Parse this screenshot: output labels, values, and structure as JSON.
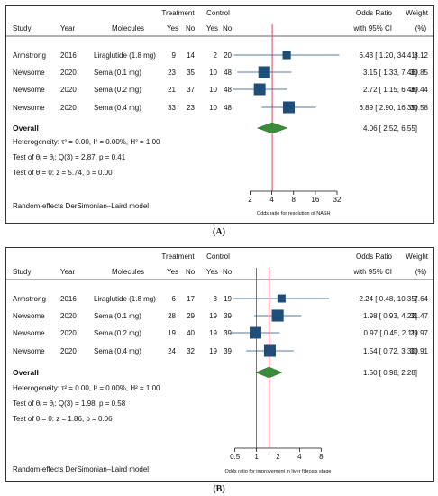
{
  "panels": [
    {
      "label": "(A)",
      "headers": {
        "study": "Study",
        "year": "Year",
        "molecules": "Molecules",
        "treatment": "Treatment",
        "control": "Control",
        "yes": "Yes",
        "no": "No",
        "or": "Odds Ratio",
        "ci": "with 95% CI",
        "weight": "Weight",
        "pct": "(%)"
      },
      "rows": [
        {
          "study": "Armstrong",
          "year": "2016",
          "molecule": "Liraglutide (1.8 mg)",
          "t_yes": "9",
          "t_no": "14",
          "c_yes": "2",
          "c_no": "20",
          "or_text": "6.43 [ 1.20, 34.41]",
          "weight": "8.12"
        },
        {
          "study": "Newsome",
          "year": "2020",
          "molecule": "Sema (0.1 mg)",
          "t_yes": "23",
          "t_no": "35",
          "c_yes": "10",
          "c_no": "48",
          "or_text": "3.15 [ 1.33,  7.46]",
          "weight": "30.85"
        },
        {
          "study": "Newsome",
          "year": "2020",
          "molecule": "Sema (0.2 mg)",
          "t_yes": "21",
          "t_no": "37",
          "c_yes": "10",
          "c_no": "48",
          "or_text": "2.72 [ 1.15,  6.48]",
          "weight": "30.44"
        },
        {
          "study": "Newsome",
          "year": "2020",
          "molecule": "Sema (0.4 mg)",
          "t_yes": "33",
          "t_no": "23",
          "c_yes": "10",
          "c_no": "48",
          "or_text": "6.89 [ 2.90, 16.35]",
          "weight": "30.58"
        }
      ],
      "overall": {
        "label": "Overall",
        "or_text": "4.06 [ 2.52,  6.55]"
      },
      "heterogeneity": "Heterogeneity: τ² = 0.00, I² = 0.00%, H² = 1.00",
      "test_theta_i": "Test of θᵢ = θⱼ: Q(3) = 2.87, p = 0.41",
      "test_theta": "Test of θ = 0: z = 5.74, p = 0.00",
      "model": "Random-effects DerSimonian–Laird model",
      "axis_title": "Odds ratio for resolution of NASH"
    },
    {
      "label": "(B)",
      "headers": {
        "study": "Study",
        "year": "Year",
        "molecules": "Molecules",
        "treatment": "Treatment",
        "control": "Control",
        "yes": "Yes",
        "no": "No",
        "or": "Odds Ratio",
        "ci": "with 95% CI",
        "weight": "Weight",
        "pct": "(%)"
      },
      "rows": [
        {
          "study": "Armstrong",
          "year": "2016",
          "molecule": "Liraglutide (1.8 mg)",
          "t_yes": "6",
          "t_no": "17",
          "c_yes": "3",
          "c_no": "19",
          "or_text": "2.24 [ 0.48, 10.35]",
          "weight": "7.64"
        },
        {
          "study": "Newsome",
          "year": "2020",
          "molecule": "Sema (0.1 mg)",
          "t_yes": "28",
          "t_no": "29",
          "c_yes": "19",
          "c_no": "39",
          "or_text": "1.98 [ 0.93,  4.22]",
          "weight": "31.47"
        },
        {
          "study": "Newsome",
          "year": "2020",
          "molecule": "Sema (0.2 mg)",
          "t_yes": "19",
          "t_no": "40",
          "c_yes": "19",
          "c_no": "39",
          "or_text": "0.97 [ 0.45,  2.11]",
          "weight": "29.97"
        },
        {
          "study": "Newsome",
          "year": "2020",
          "molecule": "Sema (0.4 mg)",
          "t_yes": "24",
          "t_no": "32",
          "c_yes": "19",
          "c_no": "39",
          "or_text": "1.54 [ 0.72,  3.30]",
          "weight": "30.91"
        }
      ],
      "overall": {
        "label": "Overall",
        "or_text": "1.50 [ 0.98,  2.28]"
      },
      "heterogeneity": "Heterogeneity: τ² = 0.00, I² = 0.00%, H² = 1.00",
      "test_theta_i": "Test of θᵢ = θⱼ: Q(3) = 1.98, p = 0.58",
      "test_theta": "Test of θ = 0: z = 1.86, p = 0.06",
      "model": "Random-effects DerSimonian–Laird model",
      "axis_title": "Odds ratio for improvement in liver fibrosis stage"
    }
  ],
  "chart_data": [
    {
      "type": "forest",
      "scale": "log2",
      "xlim": [
        1.4,
        32
      ],
      "xticks": [
        2,
        4,
        8,
        16,
        32
      ],
      "xtick_labels": [
        "2",
        "4",
        "8",
        "16",
        "32"
      ],
      "reference_line": 4.06,
      "xlabel": "Odds ratio for resolution of NASH",
      "studies": [
        {
          "or": 6.43,
          "lo": 1.2,
          "hi": 34.41,
          "weight": 8.12
        },
        {
          "or": 3.15,
          "lo": 1.33,
          "hi": 7.46,
          "weight": 30.85
        },
        {
          "or": 2.72,
          "lo": 1.15,
          "hi": 6.48,
          "weight": 30.44
        },
        {
          "or": 6.89,
          "lo": 2.9,
          "hi": 16.35,
          "weight": 30.58
        }
      ],
      "overall": {
        "or": 4.06,
        "lo": 2.52,
        "hi": 6.55
      },
      "colors": {
        "box": "#1f4e79",
        "diamond": "#3a8c3a",
        "ref": "#d9465f"
      }
    },
    {
      "type": "forest",
      "scale": "log2",
      "xlim": [
        0.45,
        10
      ],
      "xticks": [
        0.5,
        1,
        2,
        4,
        8
      ],
      "xtick_labels": [
        "0.5",
        "1",
        "2",
        "4",
        "8"
      ],
      "reference_line": 1.5,
      "null_line": 1,
      "xlabel": "Odds ratio for improvement in liver fibrosis stage",
      "studies": [
        {
          "or": 2.24,
          "lo": 0.48,
          "hi": 10.35,
          "weight": 7.64
        },
        {
          "or": 1.98,
          "lo": 0.93,
          "hi": 4.22,
          "weight": 31.47
        },
        {
          "or": 0.97,
          "lo": 0.45,
          "hi": 2.11,
          "weight": 29.97
        },
        {
          "or": 1.54,
          "lo": 0.72,
          "hi": 3.3,
          "weight": 30.91
        }
      ],
      "overall": {
        "or": 1.5,
        "lo": 0.98,
        "hi": 2.28
      },
      "colors": {
        "box": "#1f4e79",
        "diamond": "#3a8c3a",
        "ref": "#d9465f",
        "null": "#555555"
      }
    }
  ]
}
